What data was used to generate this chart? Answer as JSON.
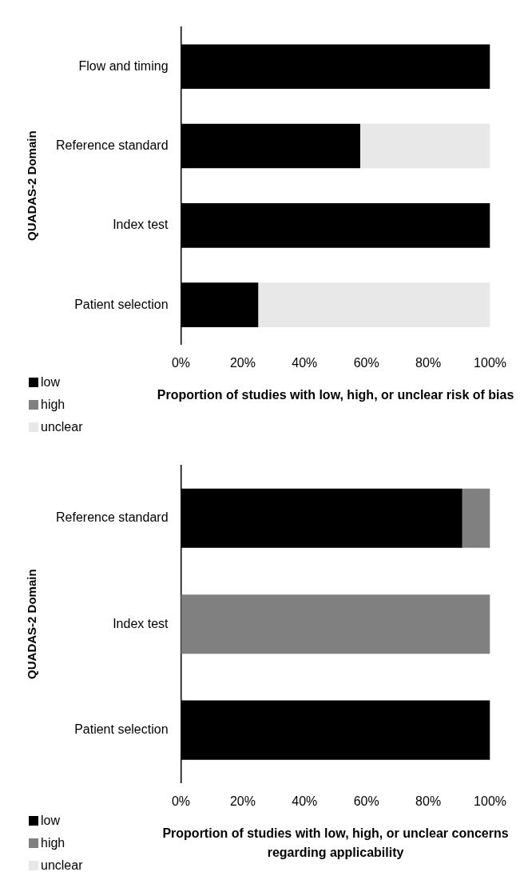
{
  "chart_data": [
    {
      "type": "bar",
      "orientation": "horizontal",
      "stacked": true,
      "categories": [
        "Flow and timing",
        "Reference standard",
        "Index test",
        "Patient selection"
      ],
      "series": [
        {
          "name": "low",
          "color": "#000000",
          "values": [
            100,
            58,
            100,
            25
          ]
        },
        {
          "name": "high",
          "color": "#808080",
          "values": [
            0,
            0,
            0,
            0
          ]
        },
        {
          "name": "unclear",
          "color": "#e8e8e8",
          "values": [
            0,
            42,
            0,
            75
          ]
        }
      ],
      "xlim": [
        0,
        100
      ],
      "xticks": [
        {
          "value": 0,
          "label": "0%"
        },
        {
          "value": 20,
          "label": "20%"
        },
        {
          "value": 40,
          "label": "40%"
        },
        {
          "value": 60,
          "label": "60%"
        },
        {
          "value": 80,
          "label": "80%"
        },
        {
          "value": 100,
          "label": "100%"
        }
      ],
      "xlabel": "Proportion of studies with low, high, or unclear risk of bias",
      "ylabel": "QUADAS-2 Domain",
      "legend": "bottom left",
      "grid": false
    },
    {
      "type": "bar",
      "orientation": "horizontal",
      "stacked": true,
      "categories": [
        "Reference standard",
        "Index test",
        "Patient selection"
      ],
      "series": [
        {
          "name": "low",
          "color": "#000000",
          "values": [
            91,
            0,
            100
          ]
        },
        {
          "name": "high",
          "color": "#808080",
          "values": [
            9,
            100,
            0
          ]
        },
        {
          "name": "unclear",
          "color": "#e8e8e8",
          "values": [
            0,
            0,
            0
          ]
        }
      ],
      "xlim": [
        0,
        100
      ],
      "xticks": [
        {
          "value": 0,
          "label": "0%"
        },
        {
          "value": 20,
          "label": "20%"
        },
        {
          "value": 40,
          "label": "40%"
        },
        {
          "value": 60,
          "label": "60%"
        },
        {
          "value": 80,
          "label": "80%"
        },
        {
          "value": 100,
          "label": "100%"
        }
      ],
      "xlabel": "Proportion of studies with low, high, or unclear concerns regarding applicability",
      "ylabel": "QUADAS-2 Domain",
      "legend": "bottom left",
      "grid": false
    }
  ]
}
